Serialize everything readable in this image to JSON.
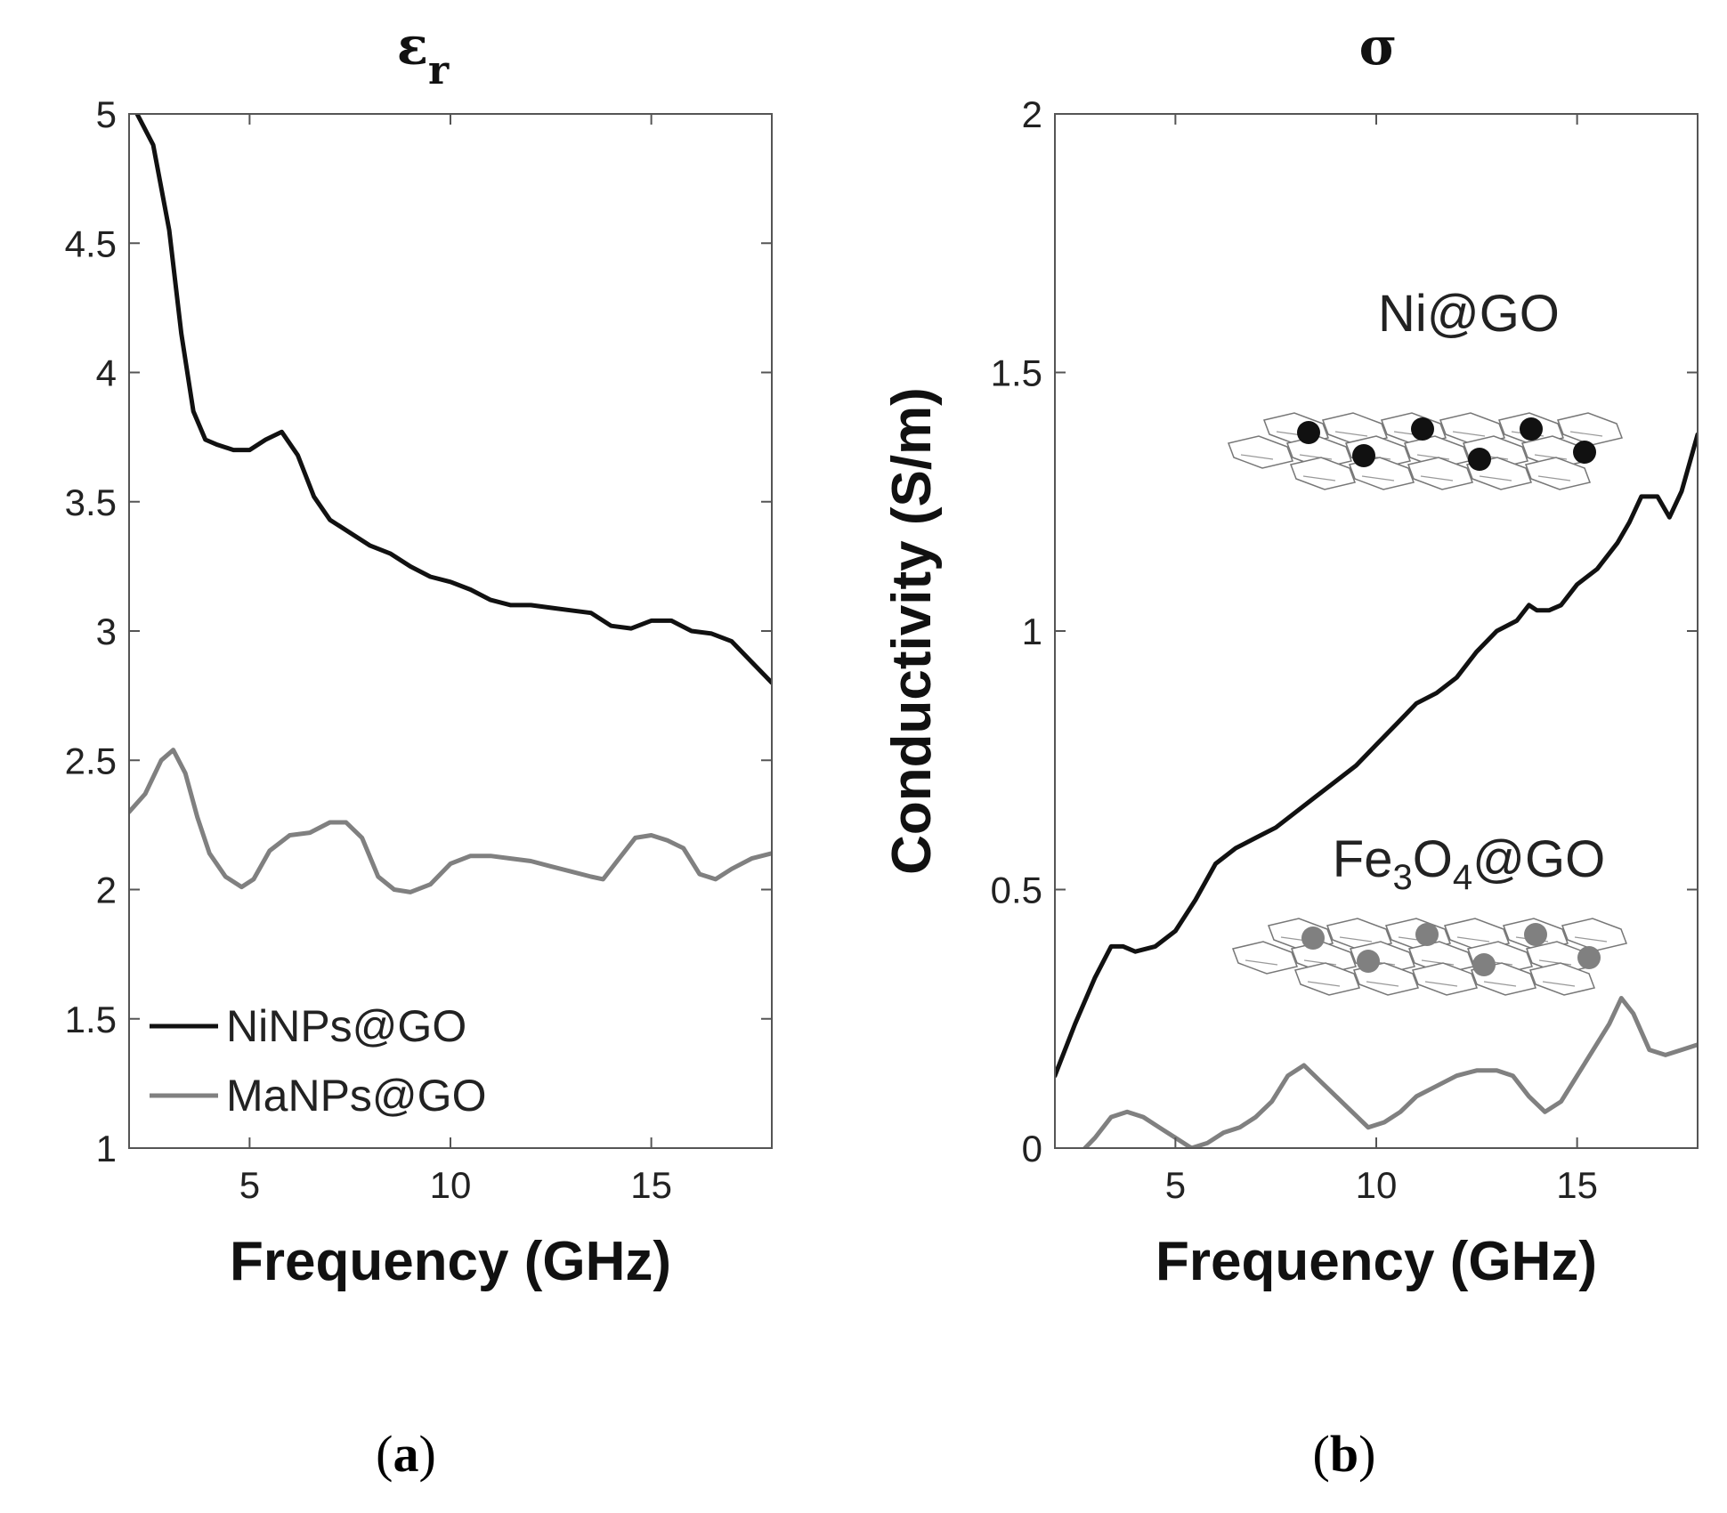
{
  "chart_data": [
    {
      "type": "line",
      "panel": "(a)",
      "panel_label_open": "(",
      "panel_label_letter": "a",
      "panel_label_close": ")",
      "title": "ε",
      "title_sub": "r",
      "xlabel": "Frequency (GHz)",
      "ylabel": "",
      "xlim": [
        2,
        18
      ],
      "ylim": [
        1,
        5
      ],
      "xticks": [
        5,
        10,
        15
      ],
      "xtick_labels": [
        "5",
        "10",
        "15"
      ],
      "yticks": [
        1,
        1.5,
        2,
        2.5,
        3,
        3.5,
        4,
        4.5,
        5
      ],
      "ytick_labels": [
        "1",
        "1.5",
        "2",
        "2.5",
        "3",
        "3.5",
        "4",
        "4.5",
        "5"
      ],
      "legend_position": "lower-left",
      "series": [
        {
          "name": "NiNPs@GO",
          "color": "#111111",
          "x": [
            2.2,
            2.6,
            3.0,
            3.3,
            3.6,
            3.9,
            4.2,
            4.6,
            5.0,
            5.4,
            5.8,
            6.2,
            6.6,
            7.0,
            7.5,
            8.0,
            8.5,
            9.0,
            9.5,
            10.0,
            10.5,
            11.0,
            11.5,
            12.0,
            12.5,
            13.0,
            13.5,
            14.0,
            14.5,
            15.0,
            15.5,
            16.0,
            16.5,
            17.0,
            17.5,
            18.0
          ],
          "values": [
            5.0,
            4.88,
            4.55,
            4.15,
            3.85,
            3.74,
            3.72,
            3.7,
            3.7,
            3.74,
            3.77,
            3.68,
            3.52,
            3.43,
            3.38,
            3.33,
            3.3,
            3.25,
            3.21,
            3.19,
            3.16,
            3.12,
            3.1,
            3.1,
            3.09,
            3.08,
            3.07,
            3.02,
            3.01,
            3.04,
            3.04,
            3.0,
            2.99,
            2.96,
            2.88,
            2.8
          ]
        },
        {
          "name": "MaNPs@GO",
          "color": "#808080",
          "x": [
            2.0,
            2.4,
            2.8,
            3.1,
            3.4,
            3.7,
            4.0,
            4.4,
            4.8,
            5.1,
            5.5,
            6.0,
            6.5,
            7.0,
            7.4,
            7.8,
            8.2,
            8.6,
            9.0,
            9.5,
            10.0,
            10.5,
            11.0,
            11.5,
            12.0,
            12.5,
            13.0,
            13.5,
            13.8,
            14.2,
            14.6,
            15.0,
            15.4,
            15.8,
            16.2,
            16.6,
            17.0,
            17.5,
            18.0
          ],
          "values": [
            2.3,
            2.37,
            2.5,
            2.54,
            2.45,
            2.28,
            2.14,
            2.05,
            2.01,
            2.04,
            2.15,
            2.21,
            2.22,
            2.26,
            2.26,
            2.2,
            2.05,
            2.0,
            1.99,
            2.02,
            2.1,
            2.13,
            2.13,
            2.12,
            2.11,
            2.09,
            2.07,
            2.05,
            2.04,
            2.12,
            2.2,
            2.21,
            2.19,
            2.16,
            2.06,
            2.04,
            2.08,
            2.12,
            2.14
          ]
        }
      ]
    },
    {
      "type": "line",
      "panel": "(b)",
      "panel_label_open": "(",
      "panel_label_letter": "b",
      "panel_label_close": ")",
      "title": "σ",
      "xlabel": "Frequency (GHz)",
      "ylabel": "Conductivity (S/m)",
      "xlim": [
        2,
        18
      ],
      "ylim": [
        0,
        2
      ],
      "xticks": [
        5,
        10,
        15
      ],
      "xtick_labels": [
        "5",
        "10",
        "15"
      ],
      "yticks": [
        0,
        0.5,
        1,
        1.5,
        2
      ],
      "ytick_labels": [
        "0",
        "0.5",
        "1",
        "1.5",
        "2"
      ],
      "annotations": [
        {
          "text": "Ni@GO",
          "x": 13.6,
          "y": 1.61,
          "color": "#111111"
        },
        {
          "text_parts": [
            "Fe",
            "3",
            "O",
            "4",
            "@GO"
          ],
          "x": 13.6,
          "y": 0.54,
          "color": "#808080"
        }
      ],
      "series": [
        {
          "name": "Ni@GO",
          "color": "#111111",
          "x": [
            2.0,
            2.5,
            3.0,
            3.4,
            3.7,
            4.0,
            4.5,
            5.0,
            5.5,
            6.0,
            6.5,
            7.0,
            7.5,
            8.0,
            8.5,
            9.0,
            9.5,
            10.0,
            10.5,
            11.0,
            11.5,
            12.0,
            12.5,
            13.0,
            13.5,
            13.8,
            14.0,
            14.3,
            14.6,
            15.0,
            15.5,
            16.0,
            16.3,
            16.6,
            17.0,
            17.3,
            17.6,
            18.0
          ],
          "values": [
            0.14,
            0.24,
            0.33,
            0.39,
            0.39,
            0.38,
            0.39,
            0.42,
            0.48,
            0.55,
            0.58,
            0.6,
            0.62,
            0.65,
            0.68,
            0.71,
            0.74,
            0.78,
            0.82,
            0.86,
            0.88,
            0.91,
            0.96,
            1.0,
            1.02,
            1.05,
            1.04,
            1.04,
            1.05,
            1.09,
            1.12,
            1.17,
            1.21,
            1.26,
            1.26,
            1.22,
            1.27,
            1.38
          ]
        },
        {
          "name": "Fe3O4@GO",
          "color": "#808080",
          "x": [
            2.5,
            3.0,
            3.4,
            3.8,
            4.2,
            4.6,
            5.0,
            5.4,
            5.8,
            6.2,
            6.6,
            7.0,
            7.4,
            7.8,
            8.2,
            8.6,
            9.0,
            9.4,
            9.8,
            10.2,
            10.6,
            11.0,
            11.5,
            12.0,
            12.5,
            13.0,
            13.4,
            13.8,
            14.2,
            14.6,
            15.0,
            15.4,
            15.8,
            16.1,
            16.4,
            16.8,
            17.2,
            17.6,
            18.0
          ],
          "values": [
            -0.02,
            0.02,
            0.06,
            0.07,
            0.06,
            0.04,
            0.02,
            0.0,
            0.01,
            0.03,
            0.04,
            0.06,
            0.09,
            0.14,
            0.16,
            0.13,
            0.1,
            0.07,
            0.04,
            0.05,
            0.07,
            0.1,
            0.12,
            0.14,
            0.15,
            0.15,
            0.14,
            0.1,
            0.07,
            0.09,
            0.14,
            0.19,
            0.24,
            0.29,
            0.26,
            0.19,
            0.18,
            0.19,
            0.2
          ]
        }
      ]
    }
  ]
}
